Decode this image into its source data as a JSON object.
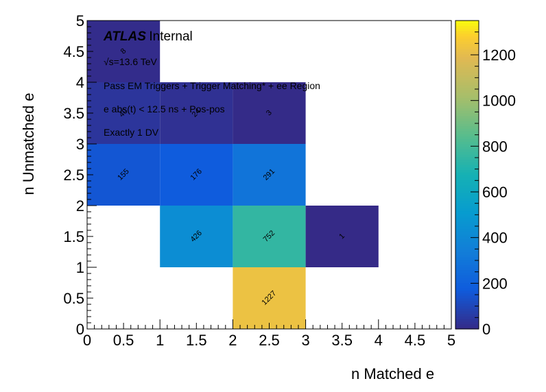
{
  "chart_data": {
    "type": "heatmap",
    "xlabel": "n Matched e",
    "ylabel": "n Unmatched e",
    "xlim": [
      0,
      5
    ],
    "ylim": [
      0,
      5
    ],
    "x_ticks": [
      "0",
      "0.5",
      "1",
      "1.5",
      "2",
      "2.5",
      "3",
      "3.5",
      "4",
      "4.5",
      "5"
    ],
    "y_ticks": [
      "0",
      "0.5",
      "1",
      "1.5",
      "2",
      "2.5",
      "3",
      "3.5",
      "4",
      "4.5",
      "5"
    ],
    "zlim": [
      0,
      1350
    ],
    "colorbar_ticks": [
      "0",
      "200",
      "400",
      "600",
      "800",
      "1000",
      "1200"
    ],
    "colormap": "viridis",
    "cells": [
      {
        "x": [
          2,
          3
        ],
        "y": [
          0,
          1
        ],
        "value": 1227
      },
      {
        "x": [
          1,
          2
        ],
        "y": [
          1,
          2
        ],
        "value": 426
      },
      {
        "x": [
          2,
          3
        ],
        "y": [
          1,
          2
        ],
        "value": 752
      },
      {
        "x": [
          3,
          4
        ],
        "y": [
          1,
          2
        ],
        "value": 1
      },
      {
        "x": [
          0,
          1
        ],
        "y": [
          2,
          3
        ],
        "value": 155
      },
      {
        "x": [
          1,
          2
        ],
        "y": [
          2,
          3
        ],
        "value": 176
      },
      {
        "x": [
          2,
          3
        ],
        "y": [
          2,
          3
        ],
        "value": 291
      },
      {
        "x": [
          0,
          1
        ],
        "y": [
          3,
          4
        ],
        "value": 40
      },
      {
        "x": [
          1,
          2
        ],
        "y": [
          3,
          4
        ],
        "value": 24
      },
      {
        "x": [
          2,
          3
        ],
        "y": [
          3,
          4
        ],
        "value": 3
      },
      {
        "x": [
          0,
          1
        ],
        "y": [
          4,
          5
        ],
        "value": 8
      }
    ]
  },
  "annotations": {
    "atlas": "ATLAS",
    "internal": "Internal",
    "energy": "√s=13.6 TeV",
    "trigger": "Pass EM Triggers + Trigger Matching* + ee Region",
    "timing": "e abs(t) < 12.5 ns + Pos-pos",
    "dv": "Exactly 1 DV"
  }
}
